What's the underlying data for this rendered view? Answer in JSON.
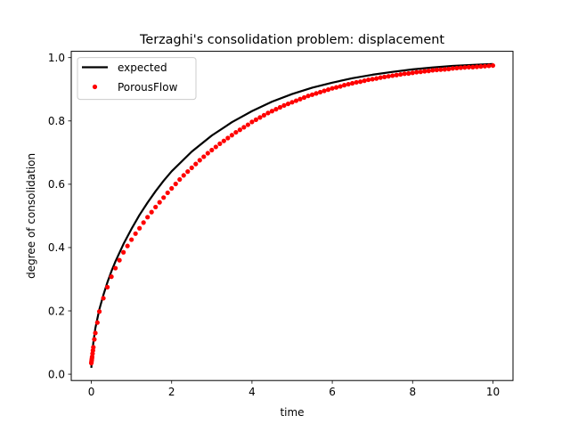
{
  "chart_data": {
    "type": "line",
    "title": "Terzaghi's consolidation problem: displacement",
    "xlabel": "time",
    "ylabel": "degree of consolidation",
    "xlim": [
      -0.5,
      10.5
    ],
    "ylim": [
      -0.02,
      1.02
    ],
    "xticks": [
      0,
      2,
      4,
      6,
      8,
      10
    ],
    "xtick_labels": [
      "0",
      "2",
      "4",
      "6",
      "8",
      "10"
    ],
    "yticks": [
      0.0,
      0.2,
      0.4,
      0.6,
      0.8,
      1.0
    ],
    "ytick_labels": [
      "0.0",
      "0.2",
      "0.4",
      "0.6",
      "0.8",
      "1.0"
    ],
    "grid": false,
    "legend_position": "top-left",
    "series": [
      {
        "name": "expected",
        "style": "line",
        "color": "#000000",
        "x": [
          0,
          0.005,
          0.01,
          0.02,
          0.05,
          0.1,
          0.15,
          0.2,
          0.3,
          0.4,
          0.5,
          0.6,
          0.8,
          1.0,
          1.2,
          1.4,
          1.6,
          1.8,
          2.0,
          2.5,
          3.0,
          3.5,
          4.0,
          4.5,
          5.0,
          5.5,
          6.0,
          6.5,
          7.0,
          7.5,
          8.0,
          8.5,
          9.0,
          9.5,
          10.0
        ],
        "y": [
          0.02,
          0.03,
          0.045,
          0.06,
          0.1,
          0.145,
          0.175,
          0.205,
          0.25,
          0.29,
          0.325,
          0.356,
          0.411,
          0.459,
          0.503,
          0.542,
          0.578,
          0.611,
          0.641,
          0.703,
          0.754,
          0.796,
          0.831,
          0.861,
          0.885,
          0.905,
          0.921,
          0.935,
          0.946,
          0.955,
          0.963,
          0.969,
          0.974,
          0.977,
          0.98
        ]
      },
      {
        "name": "PorousFlow",
        "style": "markers",
        "color": "#ff0000",
        "x": [
          0.0,
          0.005,
          0.01,
          0.015,
          0.02,
          0.03,
          0.04,
          0.05,
          0.075,
          0.1,
          0.15,
          0.2,
          0.3,
          0.4,
          0.5,
          0.6,
          0.7,
          0.8,
          0.9,
          1.0,
          1.1,
          1.2,
          1.3,
          1.4,
          1.5,
          1.6,
          1.7,
          1.8,
          1.9,
          2.0,
          2.1,
          2.2,
          2.3,
          2.4,
          2.5,
          2.6,
          2.7,
          2.8,
          2.9,
          3.0,
          3.1,
          3.2,
          3.3,
          3.4,
          3.5,
          3.6,
          3.7,
          3.8,
          3.9,
          4.0,
          4.1,
          4.2,
          4.3,
          4.4,
          4.5,
          4.6,
          4.7,
          4.8,
          4.9,
          5.0,
          5.1,
          5.2,
          5.3,
          5.4,
          5.5,
          5.6,
          5.7,
          5.8,
          5.9,
          6.0,
          6.1,
          6.2,
          6.3,
          6.4,
          6.5,
          6.6,
          6.7,
          6.8,
          6.9,
          7.0,
          7.1,
          7.2,
          7.3,
          7.4,
          7.5,
          7.6,
          7.7,
          7.8,
          7.9,
          8.0,
          8.1,
          8.2,
          8.3,
          8.4,
          8.5,
          8.6,
          8.7,
          8.8,
          8.9,
          9.0,
          9.1,
          9.2,
          9.3,
          9.4,
          9.5,
          9.6,
          9.7,
          9.8,
          9.9,
          10.0
        ],
        "y": [
          0.035,
          0.04,
          0.045,
          0.05,
          0.055,
          0.065,
          0.075,
          0.085,
          0.11,
          0.13,
          0.163,
          0.198,
          0.24,
          0.275,
          0.308,
          0.335,
          0.36,
          0.385,
          0.405,
          0.425,
          0.444,
          0.461,
          0.479,
          0.496,
          0.512,
          0.528,
          0.543,
          0.558,
          0.573,
          0.587,
          0.601,
          0.615,
          0.628,
          0.64,
          0.652,
          0.664,
          0.676,
          0.687,
          0.698,
          0.708,
          0.718,
          0.728,
          0.737,
          0.746,
          0.755,
          0.764,
          0.772,
          0.78,
          0.788,
          0.797,
          0.804,
          0.811,
          0.818,
          0.825,
          0.831,
          0.837,
          0.843,
          0.849,
          0.854,
          0.859,
          0.864,
          0.869,
          0.874,
          0.879,
          0.883,
          0.887,
          0.891,
          0.895,
          0.899,
          0.903,
          0.906,
          0.909,
          0.913,
          0.916,
          0.919,
          0.922,
          0.924,
          0.927,
          0.93,
          0.932,
          0.934,
          0.937,
          0.939,
          0.941,
          0.943,
          0.945,
          0.947,
          0.949,
          0.95,
          0.952,
          0.954,
          0.955,
          0.957,
          0.958,
          0.96,
          0.961,
          0.962,
          0.963,
          0.964,
          0.966,
          0.967,
          0.968,
          0.969,
          0.97,
          0.97,
          0.971,
          0.972,
          0.973,
          0.974,
          0.975
        ]
      }
    ]
  }
}
